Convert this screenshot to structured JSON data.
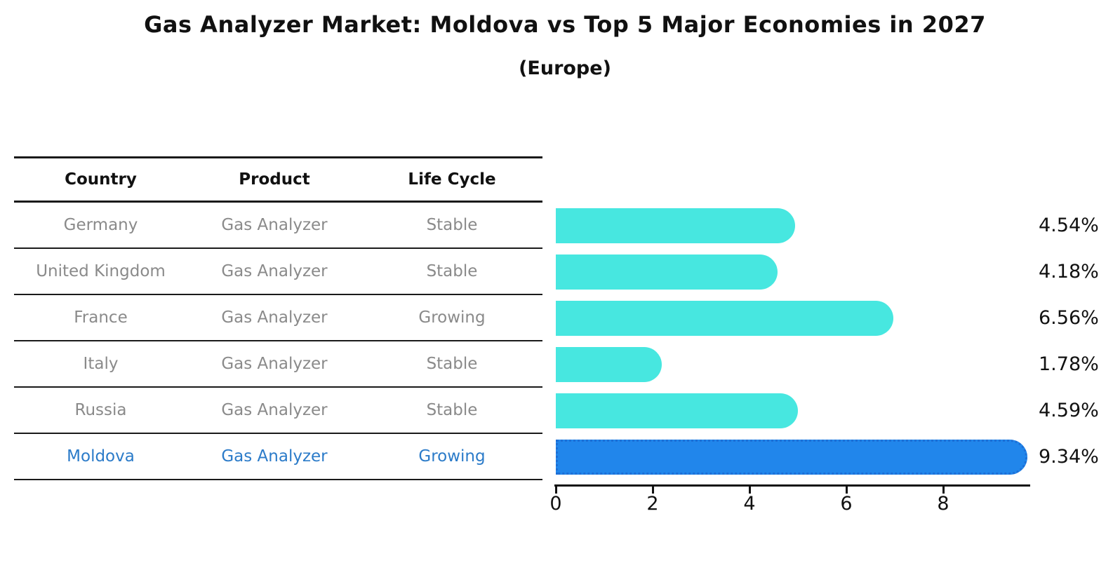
{
  "title": "Gas Analyzer Market: Moldova vs Top 5 Major Economies in 2027",
  "subtitle": "(Europe)",
  "table": {
    "headers": [
      "Country",
      "Product",
      "Life Cycle"
    ],
    "rows": [
      {
        "country": "Germany",
        "product": "Gas Analyzer",
        "life_cycle": "Stable",
        "value_label": "4.54%",
        "highlighted": false
      },
      {
        "country": "United Kingdom",
        "product": "Gas Analyzer",
        "life_cycle": "Stable",
        "value_label": "4.18%",
        "highlighted": false
      },
      {
        "country": "France",
        "product": "Gas Analyzer",
        "life_cycle": "Growing",
        "value_label": "6.56%",
        "highlighted": false
      },
      {
        "country": "Italy",
        "product": "Gas Analyzer",
        "life_cycle": "Stable",
        "value_label": "1.78%",
        "highlighted": false
      },
      {
        "country": "Russia",
        "product": "Gas Analyzer",
        "life_cycle": "Stable",
        "value_label": "4.59%",
        "highlighted": false
      },
      {
        "country": "Moldova",
        "product": "Gas Analyzer",
        "life_cycle": "Growing",
        "value_label": "9.34%",
        "highlighted": true
      }
    ]
  },
  "chart_data": {
    "type": "bar",
    "orientation": "horizontal",
    "title": "Gas Analyzer Market: Moldova vs Top 5 Major Economies in 2027",
    "subtitle": "(Europe)",
    "categories": [
      "Germany",
      "United Kingdom",
      "France",
      "Italy",
      "Russia",
      "Moldova"
    ],
    "values": [
      4.54,
      4.18,
      6.56,
      1.78,
      4.59,
      9.34
    ],
    "value_labels": [
      "4.54%",
      "4.18%",
      "6.56%",
      "1.78%",
      "4.59%",
      "9.34%"
    ],
    "xticks": [
      0,
      2,
      4,
      6,
      8
    ],
    "xlim": [
      0,
      9.8
    ],
    "highlight_index": 5,
    "bar_color": "#47E7E0",
    "highlight_color": "#2186EB",
    "highlight_border_color": "#1d6fd6",
    "grid": false,
    "legend": false
  },
  "colors": {
    "background": "#ffffff",
    "title_text": "#111111",
    "header_text": "#111111",
    "row_text": "#8a8a8a",
    "highlight_text": "#2b7bc9",
    "axis": "#111111",
    "value_text": "#111111"
  }
}
